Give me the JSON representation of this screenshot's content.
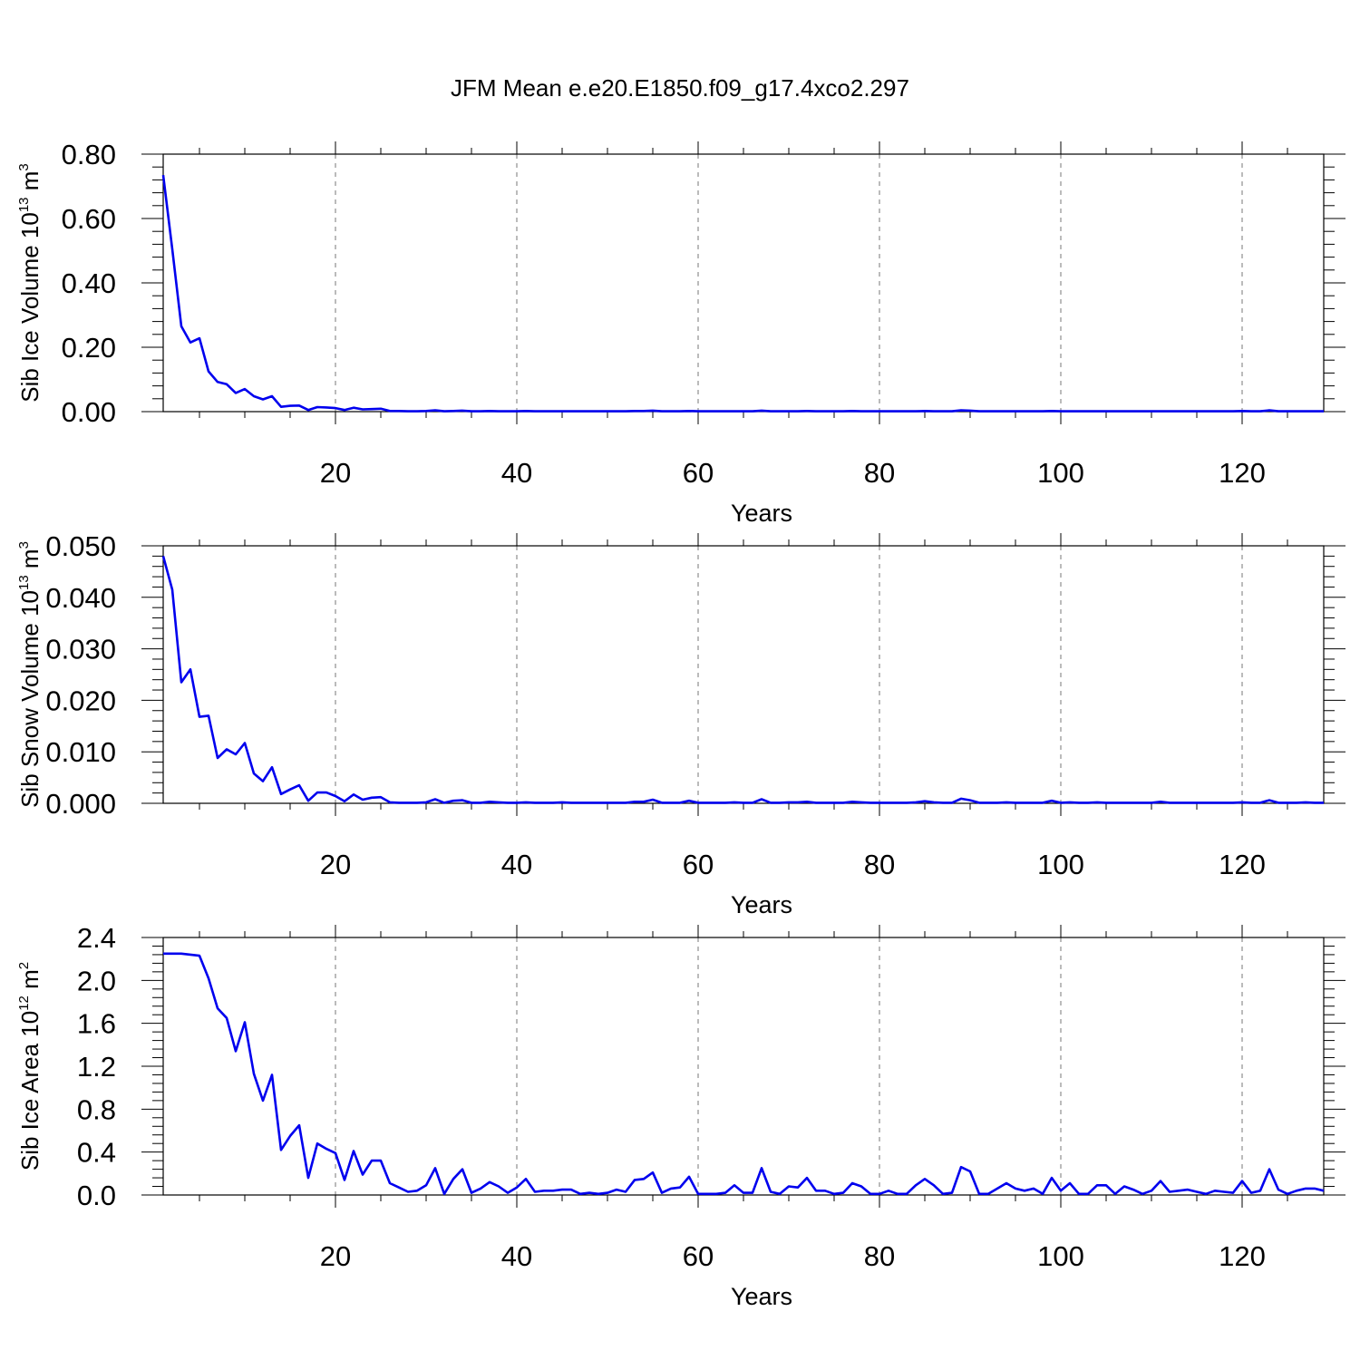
{
  "title": "JFM Mean e.e20.E1850.f09_g17.4xco2.297",
  "colors": {
    "series": "#0000ee",
    "grid": "#777777"
  },
  "chart_data": [
    {
      "type": "line",
      "ylabel": {
        "prefix": "Sib Ice Volume 10",
        "exponent": "13",
        "unit": " m",
        "unit_exponent": "3"
      },
      "xlabel": "Years",
      "xlim": [
        1,
        129
      ],
      "ylim": [
        0,
        0.8
      ],
      "yticks": [
        0,
        0.2,
        0.4,
        0.6,
        0.8
      ],
      "ytick_labels": [
        "0.00",
        "0.20",
        "0.40",
        "0.60",
        "0.80"
      ],
      "xticks": [
        20,
        40,
        60,
        80,
        100,
        120
      ],
      "xtick_labels": [
        "20",
        "40",
        "60",
        "80",
        "100",
        "120"
      ],
      "grid": "vertical dashed",
      "values": [
        0.735,
        0.505,
        0.265,
        0.215,
        0.228,
        0.125,
        0.092,
        0.085,
        0.058,
        0.07,
        0.048,
        0.038,
        0.048,
        0.015,
        0.018,
        0.019,
        0.005,
        0.014,
        0.013,
        0.011,
        0.005,
        0.012,
        0.007,
        0.008,
        0.009,
        0.002,
        0.002,
        0.001,
        0.001,
        0.002,
        0.004,
        0.001,
        0.002,
        0.003,
        0.001,
        0.001,
        0.002,
        0.001,
        0.001,
        0.001,
        0.002,
        0.001,
        0.001,
        0.001,
        0.001,
        0.001,
        0.001,
        0.001,
        0.001,
        0.001,
        0.001,
        0.001,
        0.002,
        0.002,
        0.003,
        0.001,
        0.001,
        0.001,
        0.002,
        0.001,
        0.001,
        0.001,
        0.001,
        0.001,
        0.001,
        0.001,
        0.003,
        0.001,
        0.001,
        0.001,
        0.001,
        0.002,
        0.001,
        0.001,
        0.001,
        0.001,
        0.002,
        0.001,
        0.001,
        0.001,
        0.001,
        0.001,
        0.001,
        0.001,
        0.002,
        0.001,
        0.001,
        0.001,
        0.004,
        0.003,
        0.001,
        0.001,
        0.001,
        0.001,
        0.001,
        0.001,
        0.001,
        0.001,
        0.002,
        0.001,
        0.001,
        0.001,
        0.001,
        0.001,
        0.001,
        0.001,
        0.001,
        0.001,
        0.001,
        0.001,
        0.001,
        0.001,
        0.001,
        0.001,
        0.001,
        0.001,
        0.001,
        0.001,
        0.001,
        0.002,
        0.001,
        0.001,
        0.004,
        0.001,
        0.001,
        0.001,
        0.001,
        0.001,
        0.001
      ]
    },
    {
      "type": "line",
      "ylabel": {
        "prefix": "Sib Snow Volume 10",
        "exponent": "13",
        "unit": " m",
        "unit_exponent": "3"
      },
      "xlabel": "Years",
      "xlim": [
        1,
        129
      ],
      "ylim": [
        0,
        0.05
      ],
      "yticks": [
        0,
        0.01,
        0.02,
        0.03,
        0.04,
        0.05
      ],
      "ytick_labels": [
        "0.000",
        "0.010",
        "0.020",
        "0.030",
        "0.040",
        "0.050"
      ],
      "xticks": [
        20,
        40,
        60,
        80,
        100,
        120
      ],
      "xtick_labels": [
        "20",
        "40",
        "60",
        "80",
        "100",
        "120"
      ],
      "grid": "vertical dashed",
      "values": [
        0.048,
        0.0415,
        0.0235,
        0.026,
        0.0168,
        0.017,
        0.0088,
        0.0105,
        0.0095,
        0.0117,
        0.0058,
        0.0043,
        0.007,
        0.0018,
        0.0027,
        0.0035,
        0.0005,
        0.0021,
        0.0021,
        0.0014,
        0.0004,
        0.0017,
        0.0007,
        0.0011,
        0.0012,
        0.0002,
        0.0001,
        0.0001,
        0.0001,
        0.0002,
        0.0008,
        0.0001,
        0.0005,
        0.0006,
        0.0001,
        0.0001,
        0.0003,
        0.0002,
        0.0001,
        0.0001,
        0.0002,
        0.0001,
        0.0001,
        0.0001,
        0.0002,
        0.0001,
        0.0001,
        0.0001,
        0.0001,
        0.0001,
        0.0001,
        0.0001,
        0.0003,
        0.0003,
        0.0007,
        0.0001,
        0.0001,
        0.0001,
        0.0005,
        0.0001,
        0.0001,
        0.0001,
        0.0001,
        0.0002,
        0.0001,
        0.0001,
        0.0008,
        0.0001,
        0.0001,
        0.0002,
        0.0002,
        0.0003,
        0.0001,
        0.0001,
        0.0001,
        0.0001,
        0.0003,
        0.0002,
        0.0001,
        0.0001,
        0.0001,
        0.0001,
        0.0001,
        0.0002,
        0.0004,
        0.0002,
        0.0001,
        0.0001,
        0.0009,
        0.0006,
        0.0001,
        0.0001,
        0.0001,
        0.0002,
        0.0001,
        0.0001,
        0.0001,
        0.0001,
        0.0005,
        0.0001,
        0.0002,
        0.0001,
        0.0001,
        0.0002,
        0.0001,
        0.0001,
        0.0001,
        0.0001,
        0.0001,
        0.0001,
        0.0003,
        0.0001,
        0.0001,
        0.0001,
        0.0001,
        0.0001,
        0.0001,
        0.0001,
        0.0001,
        0.0002,
        0.0001,
        0.0001,
        0.0006,
        0.0001,
        0.0001,
        0.0001,
        0.0002,
        0.0001,
        0.0001
      ]
    },
    {
      "type": "line",
      "ylabel": {
        "prefix": "Sib Ice Area 10",
        "exponent": "12",
        "unit": " m",
        "unit_exponent": "2"
      },
      "xlabel": "Years",
      "xlim": [
        1,
        129
      ],
      "ylim": [
        0,
        2.4
      ],
      "yticks": [
        0,
        0.4,
        0.8,
        1.2,
        1.6,
        2.0,
        2.4
      ],
      "ytick_labels": [
        "0.0",
        "0.4",
        "0.8",
        "1.2",
        "1.6",
        "2.0",
        "2.4"
      ],
      "xticks": [
        20,
        40,
        60,
        80,
        100,
        120
      ],
      "xtick_labels": [
        "20",
        "40",
        "60",
        "80",
        "100",
        "120"
      ],
      "grid": "vertical dashed",
      "values": [
        2.25,
        2.25,
        2.25,
        2.24,
        2.23,
        2.02,
        1.74,
        1.65,
        1.34,
        1.61,
        1.13,
        0.88,
        1.12,
        0.42,
        0.55,
        0.65,
        0.16,
        0.48,
        0.43,
        0.39,
        0.14,
        0.41,
        0.19,
        0.32,
        0.32,
        0.11,
        0.07,
        0.03,
        0.04,
        0.09,
        0.25,
        0.01,
        0.15,
        0.24,
        0.02,
        0.06,
        0.12,
        0.08,
        0.02,
        0.07,
        0.15,
        0.03,
        0.04,
        0.04,
        0.05,
        0.05,
        0.01,
        0.02,
        0.01,
        0.02,
        0.05,
        0.03,
        0.14,
        0.15,
        0.21,
        0.02,
        0.06,
        0.07,
        0.17,
        0.01,
        0.01,
        0.01,
        0.02,
        0.09,
        0.02,
        0.02,
        0.25,
        0.03,
        0.01,
        0.08,
        0.07,
        0.16,
        0.04,
        0.04,
        0.01,
        0.02,
        0.11,
        0.08,
        0.01,
        0.01,
        0.04,
        0.01,
        0.01,
        0.09,
        0.15,
        0.09,
        0.01,
        0.02,
        0.26,
        0.22,
        0.01,
        0.01,
        0.06,
        0.11,
        0.06,
        0.04,
        0.06,
        0.01,
        0.16,
        0.04,
        0.11,
        0.01,
        0.01,
        0.09,
        0.09,
        0.01,
        0.08,
        0.05,
        0.01,
        0.04,
        0.13,
        0.03,
        0.04,
        0.05,
        0.03,
        0.01,
        0.04,
        0.03,
        0.02,
        0.13,
        0.02,
        0.04,
        0.24,
        0.05,
        0.01,
        0.04,
        0.06,
        0.06,
        0.04
      ]
    }
  ]
}
